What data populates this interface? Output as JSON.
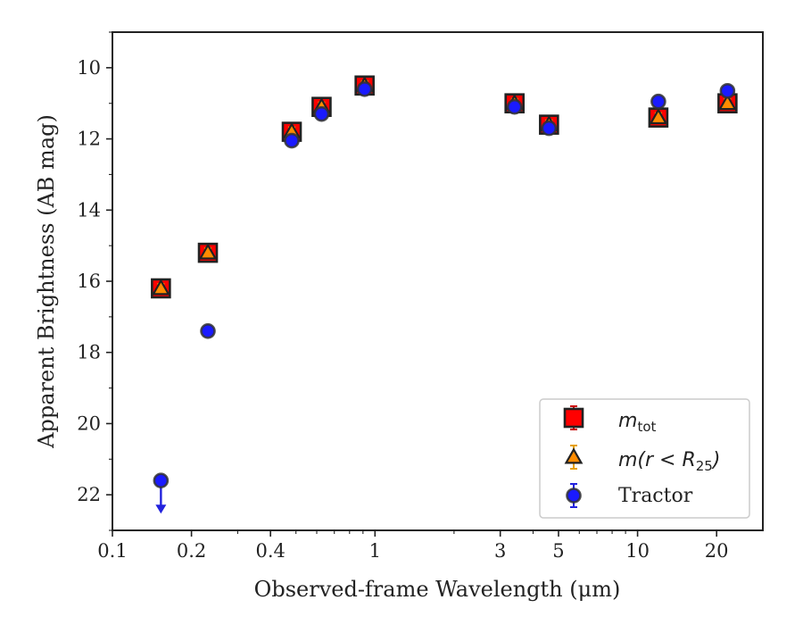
{
  "chart_data": {
    "type": "scatter",
    "xlabel": "Observed-frame Wavelength (μm)",
    "ylabel": "Apparent Brightness (AB mag)",
    "x_scale": "log",
    "xlim": [
      0.1,
      30
    ],
    "ylim": [
      23,
      9
    ],
    "y_inverted": true,
    "x_ticks": [
      0.1,
      0.2,
      0.4,
      1,
      3,
      5,
      10,
      20
    ],
    "x_tick_labels": [
      "0.1",
      "0.2",
      "0.4",
      "1",
      "3",
      "5",
      "10",
      "20"
    ],
    "y_ticks": [
      10,
      12,
      14,
      16,
      18,
      20,
      22
    ],
    "y_tick_labels": [
      "10",
      "12",
      "14",
      "16",
      "18",
      "20",
      "22"
    ],
    "grid": false,
    "legend_position": "bottom-right",
    "series": [
      {
        "name": "m_tot",
        "marker": "square",
        "face_color": "#ff0000",
        "edge_color": "#222222",
        "error_color": "#cc0000",
        "points": [
          {
            "x": 0.153,
            "y": 16.2
          },
          {
            "x": 0.231,
            "y": 15.2
          },
          {
            "x": 0.482,
            "y": 11.8
          },
          {
            "x": 0.626,
            "y": 11.1
          },
          {
            "x": 0.913,
            "y": 10.5
          },
          {
            "x": 3.4,
            "y": 11.0
          },
          {
            "x": 4.6,
            "y": 11.6
          },
          {
            "x": 12.0,
            "y": 11.4
          },
          {
            "x": 22.0,
            "y": 11.0
          }
        ]
      },
      {
        "name": "m(r < R25)",
        "marker": "triangle",
        "face_color": "#ff8c00",
        "edge_color": "#222222",
        "error_color": "#e6a000",
        "points": [
          {
            "x": 0.153,
            "y": 16.2
          },
          {
            "x": 0.231,
            "y": 15.2
          },
          {
            "x": 0.482,
            "y": 11.8
          },
          {
            "x": 0.626,
            "y": 11.1
          },
          {
            "x": 0.913,
            "y": 10.5
          },
          {
            "x": 3.4,
            "y": 11.0
          },
          {
            "x": 4.6,
            "y": 11.6
          },
          {
            "x": 12.0,
            "y": 11.4
          },
          {
            "x": 22.0,
            "y": 11.0
          }
        ]
      },
      {
        "name": "Tractor",
        "marker": "circle",
        "face_color": "#1a1aff",
        "edge_color": "#333333",
        "error_color": "#2222dd",
        "points": [
          {
            "x": 0.153,
            "y": 21.6,
            "upper_limit": true
          },
          {
            "x": 0.231,
            "y": 17.4
          },
          {
            "x": 0.482,
            "y": 12.05
          },
          {
            "x": 0.626,
            "y": 11.3
          },
          {
            "x": 0.913,
            "y": 10.6
          },
          {
            "x": 3.4,
            "y": 11.1
          },
          {
            "x": 4.6,
            "y": 11.7
          },
          {
            "x": 12.0,
            "y": 10.95
          },
          {
            "x": 22.0,
            "y": 10.65
          }
        ]
      }
    ],
    "legend": [
      {
        "label_main": "m",
        "label_sub": "tot",
        "marker": "square"
      },
      {
        "label_main": "m(r < R",
        "label_sub": "25",
        "label_after": ")",
        "marker": "triangle"
      },
      {
        "label_main": "Tractor",
        "marker": "circle"
      }
    ]
  }
}
